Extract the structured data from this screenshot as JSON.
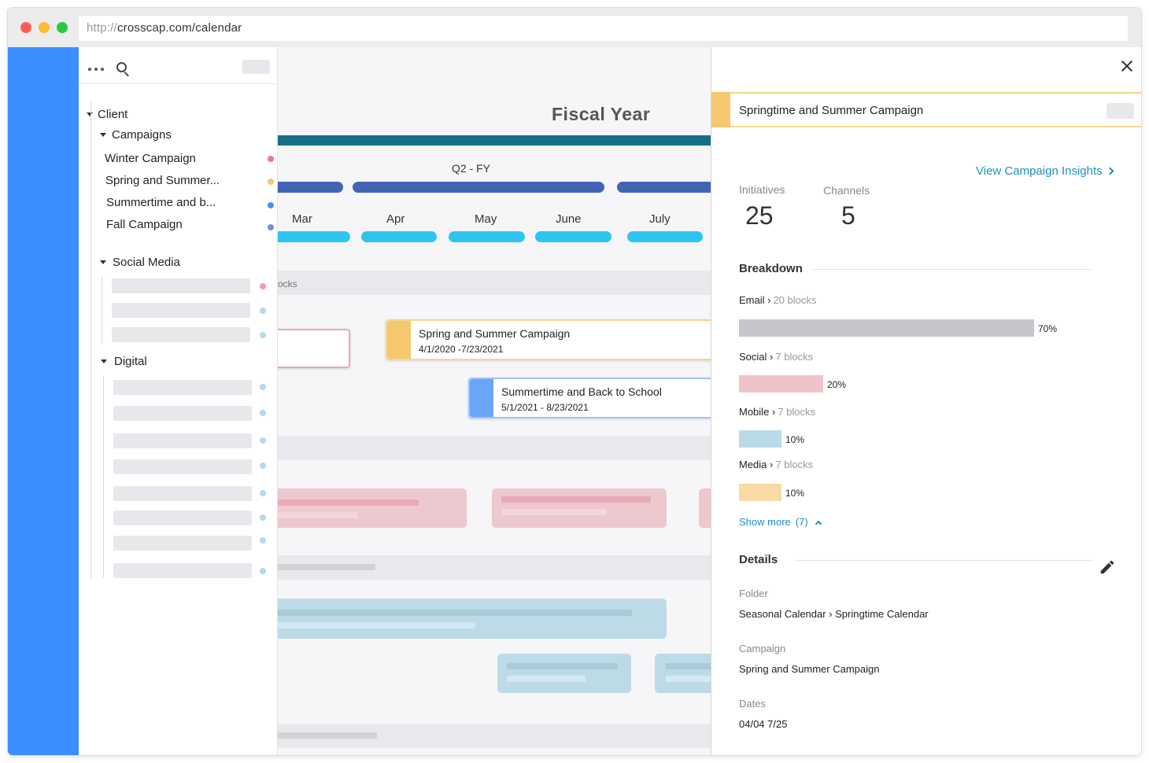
{
  "browser": {
    "url_protocol": "http://",
    "url_rest": "crosscap.com/calendar"
  },
  "sidebar": {
    "tree": {
      "root_label": "Client",
      "campaigns": {
        "label": "Campaigns",
        "items": [
          {
            "label": "Winter Campaign",
            "color": "#f07497"
          },
          {
            "label": "Spring and Summer...",
            "color": "#f5c870"
          },
          {
            "label": "Summertime and b...",
            "color": "#4d8df5"
          },
          {
            "label": "Fall Campaign",
            "color": "#7b8ad8"
          }
        ]
      },
      "social_media": {
        "label": "Social Media"
      },
      "digital": {
        "label": "Digital"
      }
    }
  },
  "calendar": {
    "title": "Fiscal Year",
    "quarter_label": "Q2 - FY",
    "months": [
      "Mar",
      "Apr",
      "May",
      "June",
      "July"
    ],
    "lane_text": "ocks",
    "campaign_bars": [
      {
        "title": "Spring and Summer Campaign",
        "dates": "4/1/2020 -7/23/2021",
        "color": "#f5c870"
      },
      {
        "title": "Summertime and Back to School",
        "dates": "5/1/2021 - 8/23/2021",
        "color": "#6ba5f7"
      }
    ]
  },
  "panel": {
    "header_title": "Springtime and Summer Campaign",
    "insights_link": "View Campaign Insights",
    "stats": [
      {
        "label": "Initiatives",
        "value": "25"
      },
      {
        "label": "Channels",
        "value": "5"
      }
    ],
    "breakdown": {
      "title": "Breakdown",
      "items": [
        {
          "name": "Email",
          "arrow": "›",
          "blocks": "20 blocks",
          "percent": "70%",
          "fraction": 0.7,
          "color": "#c4c6c9"
        },
        {
          "name": "Social",
          "arrow": "›",
          "blocks": "7 blocks",
          "percent": "20%",
          "fraction": 0.2,
          "color": "#f0c2c9"
        },
        {
          "name": "Mobile",
          "arrow": "›",
          "blocks": "7 blocks",
          "percent": "10%",
          "fraction": 0.1,
          "color": "#b9dbe8"
        },
        {
          "name": "Media",
          "arrow": "›",
          "blocks": "7 blocks",
          "percent": "10%",
          "fraction": 0.1,
          "color": "#f9d9a4"
        }
      ],
      "show_more": "Show more",
      "show_more_count": "(7)"
    },
    "details": {
      "title": "Details",
      "folder_label": "Folder",
      "folder_value": "Seasonal Calendar › Springtime Calendar",
      "campaign_label": "Campaign",
      "campaign_value": "Spring and Summer Campaign",
      "dates_label": "Dates",
      "dates_value": "04/04 7/25"
    }
  }
}
